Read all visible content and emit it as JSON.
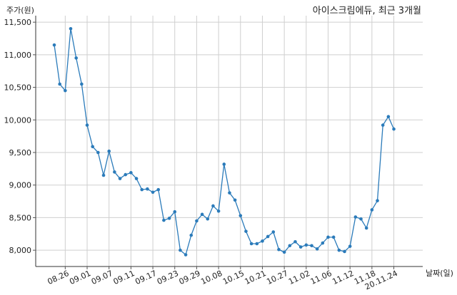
{
  "chart_data": {
    "type": "line",
    "title": "아이스크림에듀, 최근 3개월",
    "ylabel": "주가(원)",
    "xlabel": "날짜(일)",
    "ylim": [
      7750,
      11600
    ],
    "yticks": [
      8000,
      8500,
      9000,
      9500,
      10000,
      10500,
      11000,
      11500
    ],
    "ytick_labels": [
      "8,000",
      "8,500",
      "9,000",
      "9,500",
      "10,000",
      "10,500",
      "11,000",
      "11,500"
    ],
    "xtick_labels": [
      "08.26",
      "09.01",
      "09.07",
      "09.11",
      "09.17",
      "09.23",
      "09.29",
      "10.08",
      "10.15",
      "10.21",
      "10.27",
      "11.02",
      "11.06",
      "11.12",
      "11.18",
      "20.11.24"
    ],
    "xtick_index": [
      2,
      6,
      10,
      14,
      18,
      22,
      26,
      30,
      34,
      38,
      42,
      46,
      50,
      54,
      58,
      62
    ],
    "grid": true,
    "line_color": "#2b7bba",
    "series": [
      {
        "values": [
          11150,
          10550,
          10450,
          11400,
          10950,
          10550,
          9920,
          9590,
          9500,
          9150,
          9520,
          9200,
          9100,
          9160,
          9190,
          9100,
          8930,
          8940,
          8890,
          8930,
          8460,
          8490,
          8590,
          8000,
          7930,
          8230,
          8450,
          8550,
          8480,
          8680,
          8600,
          9320,
          8880,
          8770,
          8530,
          8290,
          8100,
          8100,
          8140,
          8210,
          8280,
          8010,
          7970,
          8070,
          8130,
          8050,
          8080,
          8070,
          8020,
          8110,
          8200,
          8200,
          8000,
          7980,
          8060,
          8510,
          8480,
          8340,
          8620,
          8760,
          9920,
          10050,
          9860
        ]
      }
    ]
  }
}
